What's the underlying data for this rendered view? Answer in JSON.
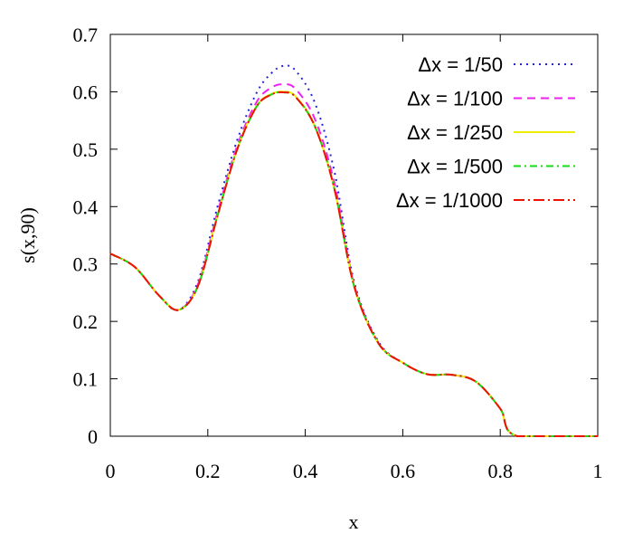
{
  "chart_data": {
    "type": "line",
    "xlabel": "x",
    "ylabel": "s(x,90)",
    "xlim": [
      0,
      1
    ],
    "ylim": [
      0,
      0.7
    ],
    "xticks": [
      {
        "value": 0,
        "label": "0"
      },
      {
        "value": 0.2,
        "label": "0.2"
      },
      {
        "value": 0.4,
        "label": "0.4"
      },
      {
        "value": 0.6,
        "label": "0.6"
      },
      {
        "value": 0.8,
        "label": "0.8"
      },
      {
        "value": 1,
        "label": "1"
      }
    ],
    "yticks": [
      {
        "value": 0,
        "label": "0"
      },
      {
        "value": 0.1,
        "label": "0.1"
      },
      {
        "value": 0.2,
        "label": "0.2"
      },
      {
        "value": 0.3,
        "label": "0.3"
      },
      {
        "value": 0.4,
        "label": "0.4"
      },
      {
        "value": 0.5,
        "label": "0.5"
      },
      {
        "value": 0.6,
        "label": "0.6"
      },
      {
        "value": 0.7,
        "label": "0.7"
      }
    ],
    "grid": false,
    "legend_position": "top-right",
    "series": [
      {
        "name": "Δx = 1/50",
        "color": "#2222dd",
        "dash": "dotted",
        "x": [
          0,
          0.05,
          0.1,
          0.14,
          0.18,
          0.22,
          0.26,
          0.3,
          0.33,
          0.355,
          0.38,
          0.42,
          0.46,
          0.5,
          0.55,
          0.6,
          0.65,
          0.7,
          0.75,
          0.8,
          0.835,
          1
        ],
        "y": [
          0.318,
          0.295,
          0.245,
          0.22,
          0.27,
          0.4,
          0.515,
          0.598,
          0.632,
          0.645,
          0.637,
          0.58,
          0.46,
          0.27,
          0.165,
          0.128,
          0.108,
          0.107,
          0.095,
          0.048,
          0,
          0
        ]
      },
      {
        "name": "Δx = 1/100",
        "color": "#ee22ee",
        "dash": "dashed",
        "x": [
          0,
          0.05,
          0.1,
          0.14,
          0.18,
          0.22,
          0.26,
          0.3,
          0.33,
          0.355,
          0.38,
          0.42,
          0.46,
          0.5,
          0.55,
          0.6,
          0.65,
          0.7,
          0.75,
          0.8,
          0.835,
          1
        ],
        "y": [
          0.318,
          0.295,
          0.245,
          0.22,
          0.265,
          0.39,
          0.505,
          0.582,
          0.607,
          0.613,
          0.605,
          0.552,
          0.44,
          0.265,
          0.163,
          0.128,
          0.108,
          0.107,
          0.095,
          0.048,
          0,
          0
        ]
      },
      {
        "name": "Δx = 1/250",
        "color": "#eeee00",
        "dash": "solid",
        "x": [
          0,
          0.05,
          0.1,
          0.14,
          0.18,
          0.22,
          0.26,
          0.3,
          0.33,
          0.355,
          0.38,
          0.42,
          0.46,
          0.5,
          0.55,
          0.6,
          0.65,
          0.7,
          0.75,
          0.8,
          0.835,
          1
        ],
        "y": [
          0.318,
          0.295,
          0.245,
          0.22,
          0.262,
          0.385,
          0.5,
          0.575,
          0.596,
          0.6,
          0.592,
          0.54,
          0.43,
          0.262,
          0.162,
          0.128,
          0.108,
          0.107,
          0.095,
          0.048,
          0,
          0
        ]
      },
      {
        "name": "Δx = 1/500",
        "color": "#11dd11",
        "dash": "dashdot",
        "x": [
          0,
          0.05,
          0.1,
          0.14,
          0.18,
          0.22,
          0.26,
          0.3,
          0.33,
          0.355,
          0.38,
          0.42,
          0.46,
          0.5,
          0.55,
          0.6,
          0.65,
          0.7,
          0.75,
          0.8,
          0.835,
          1
        ],
        "y": [
          0.318,
          0.295,
          0.245,
          0.22,
          0.262,
          0.384,
          0.499,
          0.574,
          0.595,
          0.599,
          0.591,
          0.539,
          0.43,
          0.262,
          0.162,
          0.128,
          0.108,
          0.107,
          0.095,
          0.048,
          0,
          0
        ]
      },
      {
        "name": "Δx = 1/1000",
        "color": "#ee1100",
        "dash": "dashdotlong",
        "x": [
          0,
          0.05,
          0.1,
          0.14,
          0.18,
          0.22,
          0.26,
          0.3,
          0.33,
          0.355,
          0.38,
          0.42,
          0.46,
          0.5,
          0.55,
          0.6,
          0.65,
          0.7,
          0.75,
          0.8,
          0.835,
          1
        ],
        "y": [
          0.318,
          0.295,
          0.245,
          0.22,
          0.262,
          0.384,
          0.499,
          0.574,
          0.595,
          0.599,
          0.591,
          0.539,
          0.43,
          0.262,
          0.162,
          0.128,
          0.108,
          0.107,
          0.095,
          0.048,
          0,
          0
        ]
      }
    ]
  }
}
